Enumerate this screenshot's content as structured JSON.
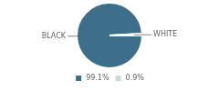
{
  "chart_data": {
    "type": "pie",
    "categories": [
      "99.1%",
      "0.9%"
    ],
    "values": [
      99.1,
      0.9
    ],
    "colors": [
      "#3d6e8a",
      "#ccd9e0"
    ],
    "annotations": [
      "BLACK",
      "WHITE"
    ],
    "legend": "bottom"
  }
}
